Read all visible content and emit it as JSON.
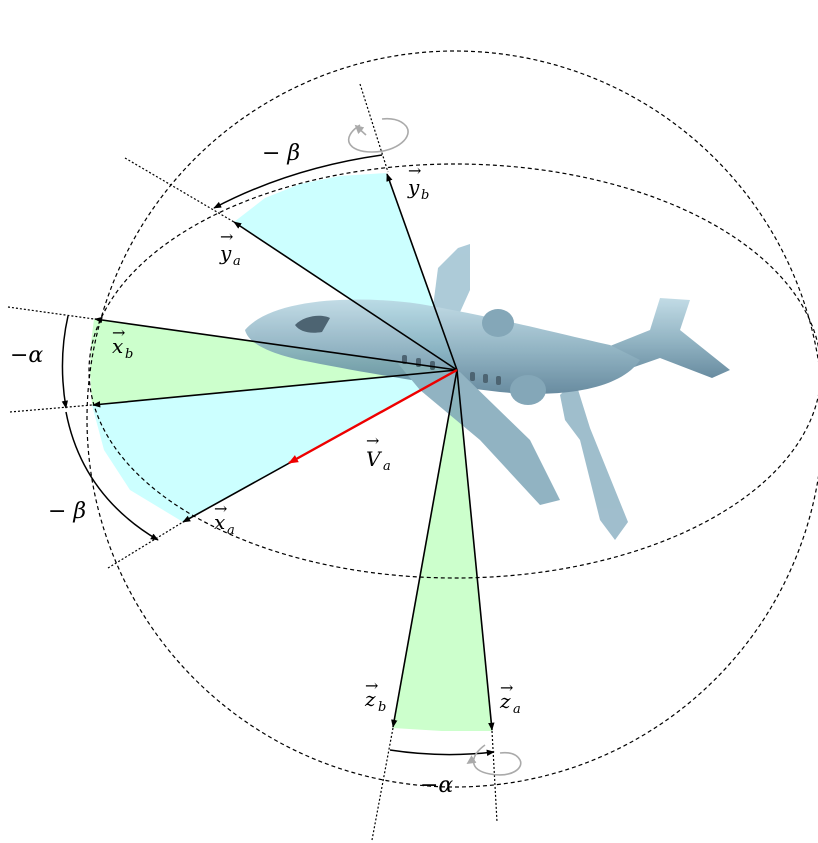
{
  "figure": {
    "angle_labels": {
      "minus_beta_top": "− β",
      "minus_alpha_left": "−α",
      "minus_beta_left": "− β",
      "minus_alpha_bottom": "−α"
    },
    "vectors": {
      "yb": {
        "letter": "y",
        "sub": "b"
      },
      "ya": {
        "letter": "y",
        "sub": "a"
      },
      "xb": {
        "letter": "x",
        "sub": "b"
      },
      "xa": {
        "letter": "x",
        "sub": "a"
      },
      "Va": {
        "letter": "V",
        "sub": "a"
      },
      "zb": {
        "letter": "z",
        "sub": "b"
      },
      "za": {
        "letter": "z",
        "sub": "a"
      }
    },
    "colors": {
      "cyan_sector": "#ccffff",
      "green_sector": "#ccffcc",
      "velocity_arrow": "#ee0000",
      "rotation_marker": "#aaaaaa",
      "lines": "#000000"
    },
    "aircraft": "business-jet-image"
  }
}
